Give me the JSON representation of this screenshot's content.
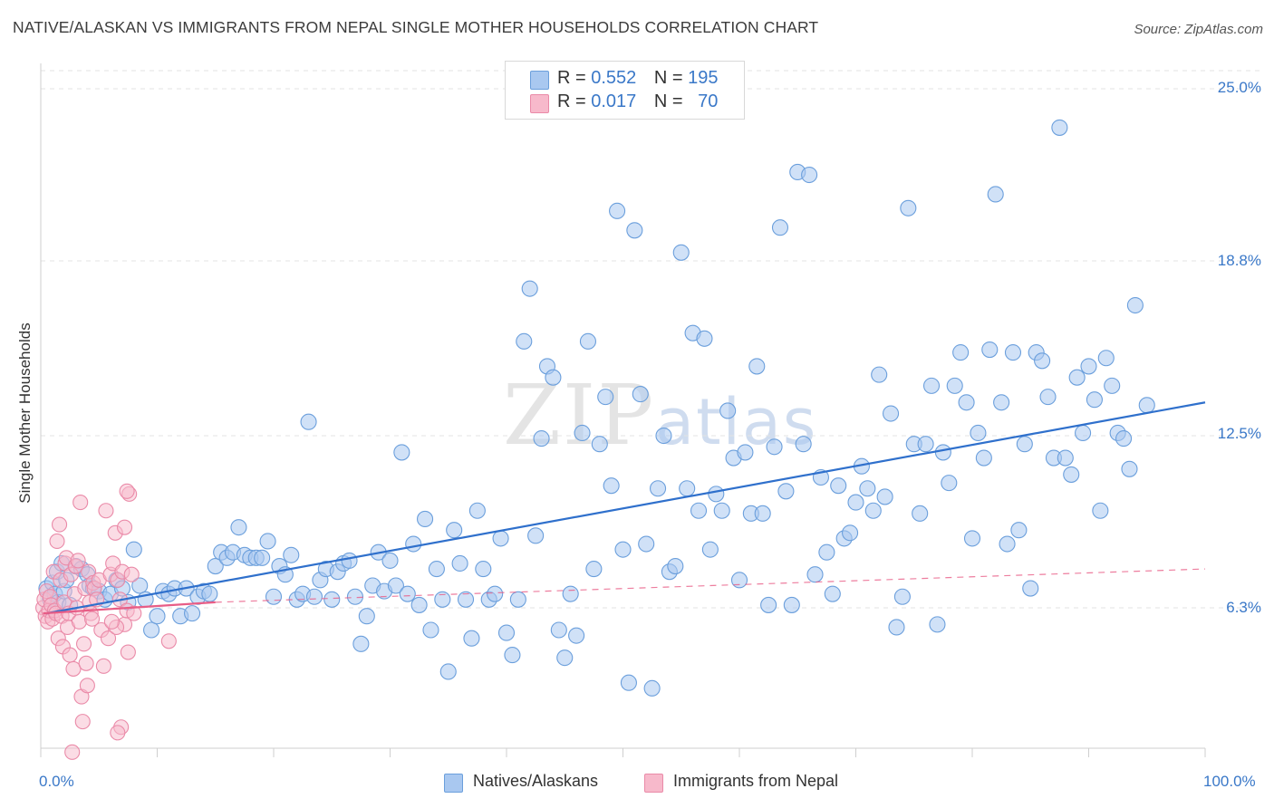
{
  "title": "NATIVE/ALASKAN VS IMMIGRANTS FROM NEPAL SINGLE MOTHER HOUSEHOLDS CORRELATION CHART",
  "source": "Source: ZipAtlas.com",
  "watermark": {
    "zip": "ZIP",
    "atlas": "atlas"
  },
  "legend_top": [
    {
      "r_label": "R =",
      "r_value": "0.552",
      "n_label": "N =",
      "n_value": "195"
    },
    {
      "r_label": "R =",
      "r_value": "0.017",
      "n_label": "N =",
      "n_value": "70"
    }
  ],
  "bottom_legend": [
    "Natives/Alaskans",
    "Immigrants from Nepal"
  ],
  "colors": {
    "blue_fill": "#a9c8f0",
    "blue_stroke": "#6b9fdc",
    "blue_line": "#2f70cc",
    "pink_fill": "#f7b9cb",
    "pink_stroke": "#ea8aa8",
    "pink_line": "#e85d86",
    "tick_text": "#3a78c8",
    "grid": "#e3e3e3"
  },
  "chart_data": {
    "type": "scatter",
    "title": "NATIVE/ALASKAN VS IMMIGRANTS FROM NEPAL SINGLE MOTHER HOUSEHOLDS CORRELATION CHART",
    "xlabel": "",
    "ylabel": "Single Mother Households",
    "xlim": [
      0,
      100
    ],
    "ylim": [
      0,
      26
    ],
    "x_tick_labels": [
      "0.0%",
      "100.0%"
    ],
    "y_ticks": [
      6.3,
      12.5,
      18.8,
      25.0
    ],
    "y_tick_labels": [
      "6.3%",
      "12.5%",
      "18.8%",
      "25.0%"
    ],
    "grid": "horizontal dashed",
    "legend": "top-center",
    "series": [
      {
        "name": "Natives/Alaskans",
        "trend": {
          "x": [
            0.5,
            100
          ],
          "y": [
            6.1,
            13.7
          ]
        },
        "points": [
          [
            0.5,
            7.0
          ],
          [
            0.8,
            6.6
          ],
          [
            1.0,
            7.2
          ],
          [
            1.2,
            6.8
          ],
          [
            1.4,
            7.6
          ],
          [
            1.5,
            6.5
          ],
          [
            1.8,
            7.9
          ],
          [
            2.0,
            6.9
          ],
          [
            2.2,
            7.3
          ],
          [
            2.5,
            6.4
          ],
          [
            3.0,
            7.8
          ],
          [
            3.5,
            7.7
          ],
          [
            4.0,
            7.5
          ],
          [
            4.2,
            7.1
          ],
          [
            4.5,
            7.0
          ],
          [
            5.0,
            6.9
          ],
          [
            5.5,
            6.6
          ],
          [
            6.0,
            6.8
          ],
          [
            6.5,
            7.3
          ],
          [
            7.0,
            7.0
          ],
          [
            7.5,
            6.5
          ],
          [
            8.0,
            8.4
          ],
          [
            8.5,
            7.1
          ],
          [
            9.0,
            6.6
          ],
          [
            9.5,
            5.5
          ],
          [
            10.0,
            6.0
          ],
          [
            10.5,
            6.9
          ],
          [
            11.0,
            6.8
          ],
          [
            11.5,
            7.0
          ],
          [
            12.0,
            6.0
          ],
          [
            12.5,
            7.0
          ],
          [
            13.0,
            6.1
          ],
          [
            13.5,
            6.7
          ],
          [
            14.0,
            6.9
          ],
          [
            14.5,
            6.8
          ],
          [
            15.0,
            7.8
          ],
          [
            15.5,
            8.3
          ],
          [
            16.0,
            8.1
          ],
          [
            16.5,
            8.3
          ],
          [
            17.0,
            9.2
          ],
          [
            17.5,
            8.2
          ],
          [
            18.0,
            8.1
          ],
          [
            18.5,
            8.1
          ],
          [
            19.0,
            8.1
          ],
          [
            19.5,
            8.7
          ],
          [
            20.0,
            6.7
          ],
          [
            20.5,
            7.8
          ],
          [
            21.0,
            7.5
          ],
          [
            21.5,
            8.2
          ],
          [
            22.0,
            6.6
          ],
          [
            22.5,
            6.8
          ],
          [
            23.0,
            13.0
          ],
          [
            23.5,
            6.7
          ],
          [
            24.0,
            7.3
          ],
          [
            24.5,
            7.7
          ],
          [
            25.0,
            6.6
          ],
          [
            25.5,
            7.6
          ],
          [
            26.0,
            7.9
          ],
          [
            26.5,
            8.0
          ],
          [
            27.0,
            6.7
          ],
          [
            27.5,
            5.0
          ],
          [
            28.0,
            6.0
          ],
          [
            28.5,
            7.1
          ],
          [
            29.0,
            8.3
          ],
          [
            29.5,
            6.9
          ],
          [
            30.0,
            8.0
          ],
          [
            30.5,
            7.1
          ],
          [
            31.0,
            11.9
          ],
          [
            31.5,
            6.8
          ],
          [
            32.0,
            8.6
          ],
          [
            32.5,
            6.4
          ],
          [
            33.0,
            9.5
          ],
          [
            33.5,
            5.5
          ],
          [
            34.0,
            7.7
          ],
          [
            34.5,
            6.6
          ],
          [
            35.0,
            4.0
          ],
          [
            35.5,
            9.1
          ],
          [
            36.0,
            7.9
          ],
          [
            36.5,
            6.6
          ],
          [
            37.0,
            5.2
          ],
          [
            37.5,
            9.8
          ],
          [
            38.0,
            7.7
          ],
          [
            38.5,
            6.6
          ],
          [
            39.0,
            6.8
          ],
          [
            39.5,
            8.8
          ],
          [
            40.0,
            5.4
          ],
          [
            40.5,
            4.6
          ],
          [
            41.0,
            6.6
          ],
          [
            41.5,
            15.9
          ],
          [
            42.0,
            17.8
          ],
          [
            42.5,
            8.9
          ],
          [
            43.0,
            12.4
          ],
          [
            43.5,
            15.0
          ],
          [
            44.0,
            14.6
          ],
          [
            44.5,
            5.5
          ],
          [
            45.0,
            4.5
          ],
          [
            45.5,
            6.8
          ],
          [
            46.0,
            5.3
          ],
          [
            46.5,
            12.6
          ],
          [
            47.0,
            15.9
          ],
          [
            47.5,
            7.7
          ],
          [
            48.0,
            12.2
          ],
          [
            48.5,
            13.9
          ],
          [
            49.0,
            10.7
          ],
          [
            49.5,
            20.6
          ],
          [
            50.0,
            8.4
          ],
          [
            50.5,
            3.6
          ],
          [
            51.0,
            19.9
          ],
          [
            51.5,
            14.0
          ],
          [
            52.0,
            8.6
          ],
          [
            52.5,
            3.4
          ],
          [
            53.0,
            10.6
          ],
          [
            53.5,
            12.5
          ],
          [
            54.0,
            7.6
          ],
          [
            54.5,
            7.8
          ],
          [
            55.0,
            19.1
          ],
          [
            55.5,
            10.6
          ],
          [
            56.0,
            16.2
          ],
          [
            56.5,
            9.8
          ],
          [
            57.0,
            16.0
          ],
          [
            57.5,
            8.4
          ],
          [
            58.0,
            10.4
          ],
          [
            58.5,
            9.8
          ],
          [
            59.0,
            13.4
          ],
          [
            59.5,
            11.7
          ],
          [
            60.0,
            7.3
          ],
          [
            60.5,
            11.9
          ],
          [
            61.0,
            9.7
          ],
          [
            61.5,
            15.0
          ],
          [
            62.0,
            9.7
          ],
          [
            62.5,
            6.4
          ],
          [
            63.0,
            12.1
          ],
          [
            63.5,
            20.0
          ],
          [
            64.0,
            10.5
          ],
          [
            64.5,
            6.4
          ],
          [
            65.0,
            22.0
          ],
          [
            65.5,
            12.2
          ],
          [
            66.0,
            21.9
          ],
          [
            66.5,
            7.5
          ],
          [
            67.0,
            11.0
          ],
          [
            67.5,
            8.3
          ],
          [
            68.0,
            6.8
          ],
          [
            68.5,
            10.7
          ],
          [
            69.0,
            8.8
          ],
          [
            69.5,
            9.0
          ],
          [
            70.0,
            10.1
          ],
          [
            70.5,
            11.4
          ],
          [
            71.0,
            10.6
          ],
          [
            71.5,
            9.8
          ],
          [
            72.0,
            14.7
          ],
          [
            72.5,
            10.3
          ],
          [
            73.0,
            13.3
          ],
          [
            73.5,
            5.6
          ],
          [
            74.0,
            6.7
          ],
          [
            74.5,
            20.7
          ],
          [
            75.0,
            12.2
          ],
          [
            75.5,
            9.7
          ],
          [
            76.0,
            12.2
          ],
          [
            76.5,
            14.3
          ],
          [
            77.0,
            5.7
          ],
          [
            77.5,
            11.9
          ],
          [
            78.0,
            10.8
          ],
          [
            78.5,
            14.3
          ],
          [
            79.0,
            15.5
          ],
          [
            79.5,
            13.7
          ],
          [
            80.0,
            8.8
          ],
          [
            80.5,
            12.6
          ],
          [
            81.0,
            11.7
          ],
          [
            81.5,
            15.6
          ],
          [
            82.0,
            21.2
          ],
          [
            82.5,
            13.7
          ],
          [
            83.0,
            8.6
          ],
          [
            83.5,
            15.5
          ],
          [
            84.0,
            9.1
          ],
          [
            84.5,
            12.2
          ],
          [
            85.0,
            7.0
          ],
          [
            85.5,
            15.5
          ],
          [
            86.0,
            15.2
          ],
          [
            86.5,
            13.9
          ],
          [
            87.0,
            11.7
          ],
          [
            87.5,
            23.6
          ],
          [
            88.0,
            11.7
          ],
          [
            88.5,
            11.1
          ],
          [
            89.0,
            14.6
          ],
          [
            89.5,
            12.6
          ],
          [
            90.0,
            15.0
          ],
          [
            90.5,
            13.8
          ],
          [
            91.0,
            9.8
          ],
          [
            91.5,
            15.3
          ],
          [
            92.0,
            14.3
          ],
          [
            92.5,
            12.6
          ],
          [
            93.0,
            12.4
          ],
          [
            93.5,
            11.3
          ],
          [
            94.0,
            17.2
          ],
          [
            95.0,
            13.6
          ]
        ]
      },
      {
        "name": "Immigrants from Nepal",
        "trend_solid": {
          "x": [
            0.2,
            15.0
          ],
          "y": [
            6.1,
            6.5
          ]
        },
        "trend_dashed": {
          "x": [
            15.0,
            100
          ],
          "y": [
            6.5,
            7.7
          ]
        },
        "points": [
          [
            0.2,
            6.3
          ],
          [
            0.3,
            6.6
          ],
          [
            0.4,
            6.0
          ],
          [
            0.5,
            6.9
          ],
          [
            0.6,
            5.8
          ],
          [
            0.7,
            6.2
          ],
          [
            0.8,
            6.7
          ],
          [
            0.9,
            6.4
          ],
          [
            1.0,
            5.9
          ],
          [
            1.1,
            7.6
          ],
          [
            1.2,
            6.2
          ],
          [
            1.3,
            6.1
          ],
          [
            1.4,
            8.7
          ],
          [
            1.5,
            5.2
          ],
          [
            1.6,
            9.3
          ],
          [
            1.7,
            7.3
          ],
          [
            1.8,
            6.0
          ],
          [
            1.9,
            4.9
          ],
          [
            2.0,
            6.5
          ],
          [
            2.1,
            7.9
          ],
          [
            2.2,
            8.1
          ],
          [
            2.3,
            5.6
          ],
          [
            2.4,
            6.1
          ],
          [
            2.5,
            4.6
          ],
          [
            2.6,
            7.5
          ],
          [
            2.7,
            1.1
          ],
          [
            2.8,
            4.1
          ],
          [
            2.9,
            6.8
          ],
          [
            3.0,
            7.8
          ],
          [
            3.1,
            6.3
          ],
          [
            3.2,
            8.0
          ],
          [
            3.3,
            5.8
          ],
          [
            3.4,
            10.1
          ],
          [
            3.5,
            3.1
          ],
          [
            3.6,
            2.2
          ],
          [
            3.7,
            5.0
          ],
          [
            3.8,
            7.0
          ],
          [
            3.9,
            4.3
          ],
          [
            4.0,
            3.5
          ],
          [
            4.1,
            7.6
          ],
          [
            4.2,
            6.5
          ],
          [
            4.3,
            6.1
          ],
          [
            4.4,
            5.9
          ],
          [
            4.5,
            7.2
          ],
          [
            4.6,
            7.0
          ],
          [
            4.8,
            6.6
          ],
          [
            5.0,
            7.3
          ],
          [
            5.2,
            5.5
          ],
          [
            5.4,
            4.2
          ],
          [
            5.6,
            9.8
          ],
          [
            5.8,
            5.2
          ],
          [
            6.0,
            7.5
          ],
          [
            6.2,
            7.9
          ],
          [
            6.4,
            9.0
          ],
          [
            6.6,
            7.3
          ],
          [
            6.8,
            6.6
          ],
          [
            7.0,
            7.6
          ],
          [
            7.2,
            5.7
          ],
          [
            7.4,
            6.2
          ],
          [
            7.6,
            10.4
          ],
          [
            7.8,
            7.5
          ],
          [
            8.0,
            6.1
          ],
          [
            6.5,
            5.6
          ],
          [
            6.1,
            5.8
          ],
          [
            7.5,
            4.7
          ],
          [
            6.9,
            2.0
          ],
          [
            6.6,
            1.8
          ],
          [
            7.4,
            10.5
          ],
          [
            7.2,
            9.2
          ],
          [
            11.0,
            5.1
          ]
        ]
      }
    ]
  }
}
